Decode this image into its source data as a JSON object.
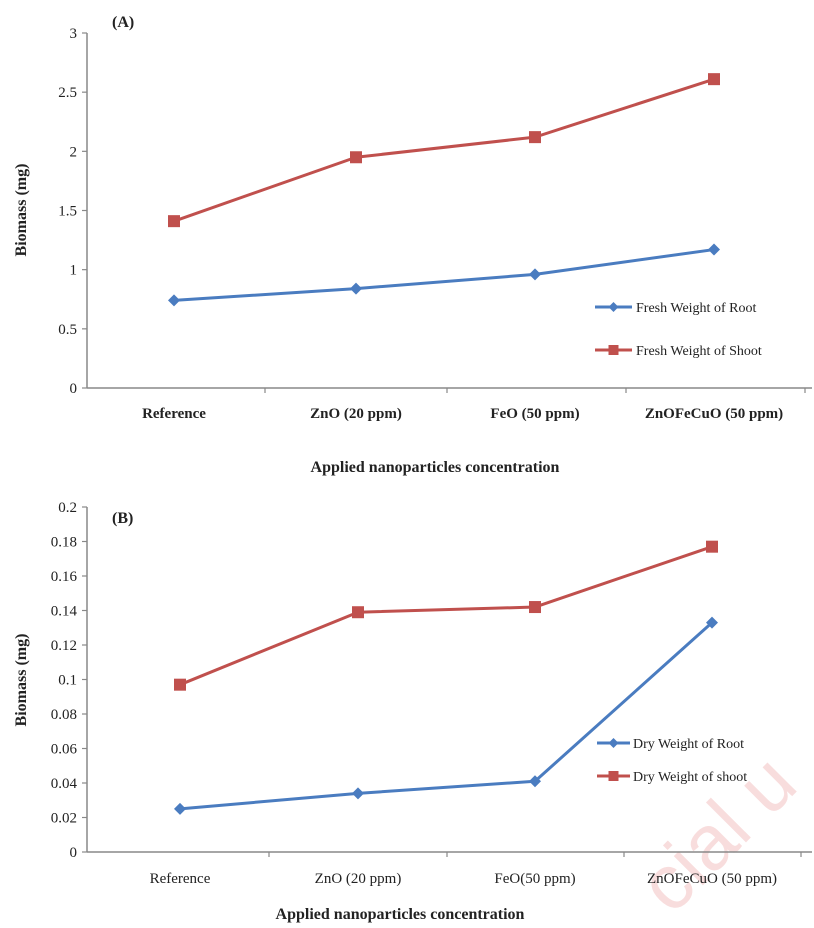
{
  "watermark": "cial u",
  "chart_data": [
    {
      "type": "line",
      "panel_label": "(A)",
      "categories": [
        "Reference",
        "ZnO (20 ppm)",
        "FeO (50 ppm)",
        "ZnOFeCuO (50 ppm)"
      ],
      "series": [
        {
          "name": "Fresh  Weight of Root",
          "values": [
            0.74,
            0.84,
            0.96,
            1.17
          ],
          "color": "#4a7cc0",
          "marker": "diamond"
        },
        {
          "name": "Fresh Weight of Shoot",
          "values": [
            1.41,
            1.95,
            2.12,
            2.61
          ],
          "color": "#c0504d",
          "marker": "square"
        }
      ],
      "xlabel": "Applied  nanoparticles  concentration",
      "ylabel": "Biomass (mg)",
      "ylim": [
        0,
        3
      ],
      "yticks": [
        "0",
        "0.5",
        "1",
        "1.5",
        "2",
        "2.5",
        "3"
      ],
      "grid": false,
      "legend_position": "right"
    },
    {
      "type": "line",
      "panel_label": "(B)",
      "categories": [
        "Reference",
        "ZnO (20 ppm)",
        "FeO(50 ppm)",
        "ZnOFeCuO (50 ppm)"
      ],
      "series": [
        {
          "name": "Dry Weight of Root",
          "values": [
            0.025,
            0.034,
            0.041,
            0.133
          ],
          "color": "#4a7cc0",
          "marker": "diamond"
        },
        {
          "name": "Dry Weight of shoot",
          "values": [
            0.097,
            0.139,
            0.142,
            0.177
          ],
          "color": "#c0504d",
          "marker": "square"
        }
      ],
      "xlabel": "Applied nanoparticles  concentration",
      "ylabel": "Biomass (mg)",
      "ylim": [
        0,
        0.2
      ],
      "yticks": [
        "0",
        "0.02",
        "0.04",
        "0.06",
        "0.08",
        "0.1",
        "0.12",
        "0.14",
        "0.16",
        "0.18",
        "0.2"
      ],
      "grid": false,
      "legend_position": "right"
    }
  ]
}
